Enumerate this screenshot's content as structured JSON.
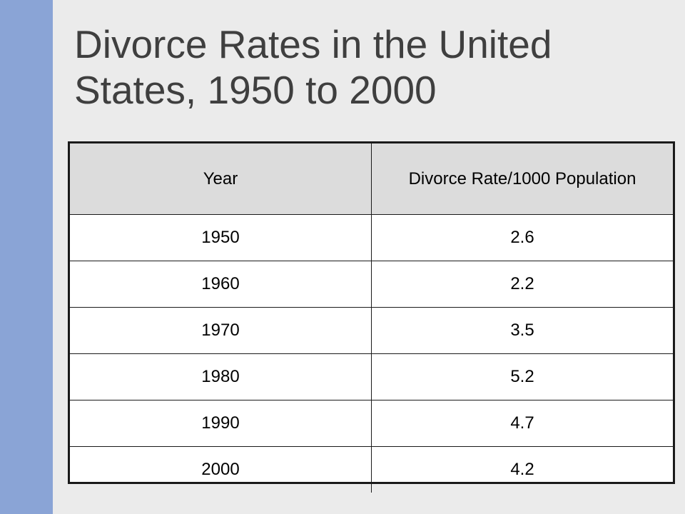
{
  "slide": {
    "title": "Divorce Rates in the United States, 1950 to 2000",
    "accent_bar_color": "#8aa4d6",
    "background_color": "#ebebeb"
  },
  "table": {
    "headers": [
      "Year",
      "Divorce Rate/1000 Population"
    ],
    "rows": [
      [
        "1950",
        "2.6"
      ],
      [
        "1960",
        "2.2"
      ],
      [
        "1970",
        "3.5"
      ],
      [
        "1980",
        "5.2"
      ],
      [
        "1990",
        "4.7"
      ],
      [
        "2000",
        "4.2"
      ]
    ]
  }
}
